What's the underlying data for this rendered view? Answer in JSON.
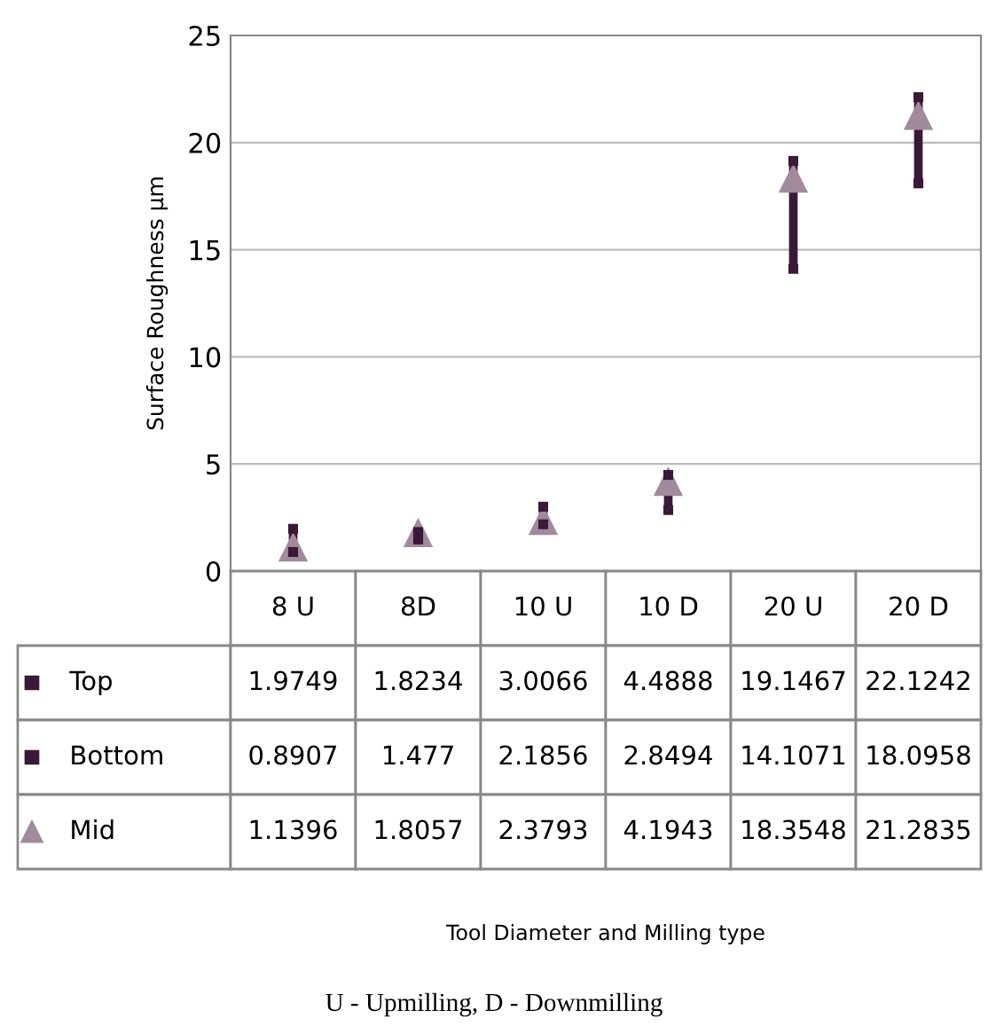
{
  "chart_data": {
    "type": "scatter",
    "categories": [
      "8 U",
      "8D",
      "10 U",
      "10 D",
      "20 U",
      "20 D"
    ],
    "series": [
      {
        "name": "Top",
        "color": "#3a1838",
        "marker": "square",
        "values": [
          1.9749,
          1.8234,
          3.0066,
          4.4888,
          19.1467,
          22.1242
        ]
      },
      {
        "name": "Bottom",
        "color": "#3a1838",
        "marker": "square",
        "values": [
          0.8907,
          1.477,
          2.1856,
          2.8494,
          14.1071,
          18.0958
        ]
      },
      {
        "name": "Mid",
        "color": "#a08a9c",
        "marker": "triangle",
        "values": [
          1.1396,
          1.8057,
          2.3793,
          4.1943,
          18.3548,
          21.2835
        ]
      }
    ],
    "ylabel": "Surface Roughness µm",
    "ylim": [
      0,
      25
    ],
    "yticks": [
      0,
      5,
      10,
      15,
      20,
      25
    ],
    "grid": "y",
    "legend": "bottom left",
    "data_labels": true,
    "annotations": [
      "Tool Diameter and Milling type",
      "U - Upmilling, D - Downmilling"
    ]
  }
}
